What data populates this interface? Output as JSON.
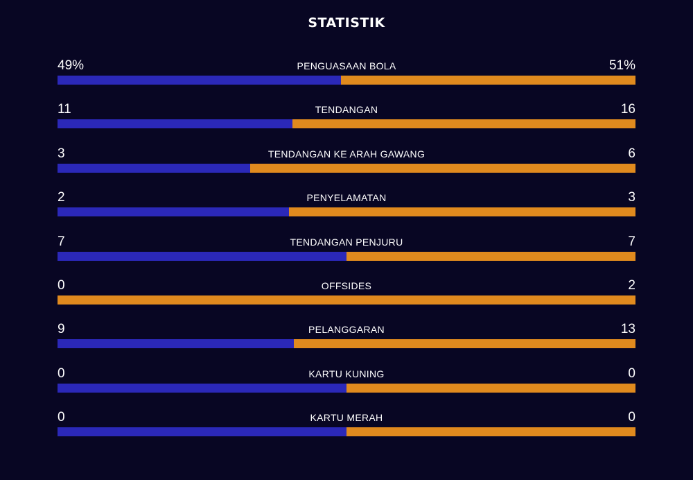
{
  "title": "STATISTIK",
  "colors": {
    "background": "#080623",
    "home": "#2B28B8",
    "away": "#E08A1E"
  },
  "stats": [
    {
      "label": "PENGUASAAN BOLA",
      "left": "49%",
      "right": "51%",
      "home_share": 0.49
    },
    {
      "label": "TENDANGAN",
      "left": "11",
      "right": "16",
      "home_share": 0.407
    },
    {
      "label": "TENDANGAN KE ARAH GAWANG",
      "left": "3",
      "right": "6",
      "home_share": 0.333
    },
    {
      "label": "PENYELAMATAN",
      "left": "2",
      "right": "3",
      "home_share": 0.4
    },
    {
      "label": "TENDANGAN PENJURU",
      "left": "7",
      "right": "7",
      "home_share": 0.5
    },
    {
      "label": "OFFSIDES",
      "left": "0",
      "right": "2",
      "home_share": 0
    },
    {
      "label": "PELANGGARAN",
      "left": "9",
      "right": "13",
      "home_share": 0.409
    },
    {
      "label": "KARTU KUNING",
      "left": "0",
      "right": "0",
      "home_share": 0.5
    },
    {
      "label": "KARTU MERAH",
      "left": "0",
      "right": "0",
      "home_share": 0.5
    }
  ]
}
